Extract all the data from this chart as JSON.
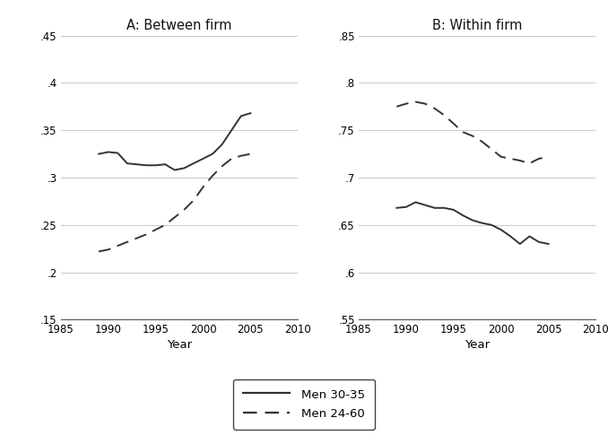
{
  "panel_A_title": "A: Between firm",
  "panel_B_title": "B: Within firm",
  "xlabel": "Year",
  "legend_labels": [
    "Men 30-35",
    "Men 24-60"
  ],
  "A_years_solid": [
    1989,
    1990,
    1991,
    1992,
    1993,
    1994,
    1995,
    1996,
    1997,
    1998,
    1999,
    2000,
    2001,
    2002,
    2003,
    2004,
    2005
  ],
  "A_solid": [
    0.325,
    0.327,
    0.326,
    0.315,
    0.314,
    0.313,
    0.313,
    0.314,
    0.308,
    0.31,
    0.315,
    0.32,
    0.325,
    0.335,
    0.35,
    0.365,
    0.368
  ],
  "A_years_dash": [
    1989,
    1990,
    1991,
    1992,
    1993,
    1994,
    1995,
    1996,
    1997,
    1998,
    1999,
    2000,
    2001,
    2002,
    2003,
    2004,
    2005
  ],
  "A_dash": [
    0.222,
    0.224,
    0.228,
    0.232,
    0.236,
    0.24,
    0.245,
    0.25,
    0.258,
    0.266,
    0.276,
    0.29,
    0.302,
    0.312,
    0.32,
    0.323,
    0.325
  ],
  "B_years_solid": [
    1989,
    1990,
    1991,
    1992,
    1993,
    1994,
    1995,
    1996,
    1997,
    1998,
    1999,
    2000,
    2001,
    2002,
    2003,
    2004,
    2005
  ],
  "B_solid": [
    0.668,
    0.669,
    0.674,
    0.671,
    0.668,
    0.668,
    0.666,
    0.66,
    0.655,
    0.652,
    0.65,
    0.645,
    0.638,
    0.63,
    0.638,
    0.632,
    0.63
  ],
  "B_years_dash": [
    1989,
    1990,
    1991,
    1992,
    1993,
    1994,
    1995,
    1996,
    1997,
    1998,
    1999,
    2000,
    2001,
    2002,
    2003,
    2004,
    2005
  ],
  "B_dash": [
    0.775,
    0.778,
    0.78,
    0.778,
    0.773,
    0.766,
    0.757,
    0.748,
    0.744,
    0.738,
    0.73,
    0.722,
    0.72,
    0.718,
    0.715,
    0.72,
    0.722
  ],
  "A_ylim": [
    0.15,
    0.45
  ],
  "A_yticks": [
    0.15,
    0.2,
    0.25,
    0.3,
    0.35,
    0.4,
    0.45
  ],
  "A_ytick_labels": [
    ".15",
    ".2",
    ".25",
    ".3",
    ".35",
    ".4",
    ".45"
  ],
  "B_ylim": [
    0.55,
    0.85
  ],
  "B_yticks": [
    0.55,
    0.6,
    0.65,
    0.7,
    0.75,
    0.8,
    0.85
  ],
  "B_ytick_labels": [
    ".55",
    ".6",
    ".65",
    ".7",
    ".75",
    ".8",
    ".85"
  ],
  "xlim": [
    1985,
    2010
  ],
  "xticks": [
    1985,
    1990,
    1995,
    2000,
    2005,
    2010
  ],
  "line_color": "#333333",
  "bg_color": "#ffffff",
  "grid_color": "#c8c8c8"
}
